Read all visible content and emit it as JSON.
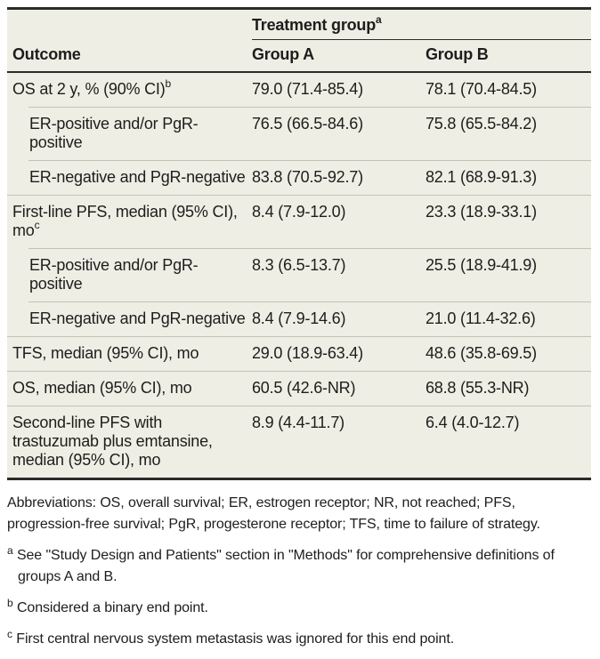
{
  "table": {
    "span_header": {
      "label": "Treatment group",
      "sup": "a"
    },
    "columns": {
      "outcome": "Outcome",
      "group_a": "Group A",
      "group_b": "Group B"
    },
    "rows": [
      {
        "label": "OS at 2 y, % (90% CI)",
        "sup": "b",
        "indent": false,
        "group_a": "79.0 (71.4-85.4)",
        "group_b": "78.1 (70.4-84.5)"
      },
      {
        "label": "ER-positive and/or PgR-positive",
        "indent": true,
        "group_a": "76.5 (66.5-84.6)",
        "group_b": "75.8 (65.5-84.2)"
      },
      {
        "label": "ER-negative and PgR-negative",
        "indent": true,
        "group_a": "83.8 (70.5-92.7)",
        "group_b": "82.1 (68.9-91.3)"
      },
      {
        "label": "First-line PFS, median (95% CI), mo",
        "sup": "c",
        "indent": false,
        "group_a": "8.4 (7.9-12.0)",
        "group_b": "23.3 (18.9-33.1)"
      },
      {
        "label": "ER-positive and/or PgR-positive",
        "indent": true,
        "group_a": "8.3 (6.5-13.7)",
        "group_b": "25.5 (18.9-41.9)"
      },
      {
        "label": "ER-negative and PgR-negative",
        "indent": true,
        "group_a": "8.4 (7.9-14.6)",
        "group_b": "21.0 (11.4-32.6)"
      },
      {
        "label": "TFS, median (95% CI), mo",
        "indent": false,
        "group_a": "29.0 (18.9-63.4)",
        "group_b": "48.6 (35.8-69.5)"
      },
      {
        "label": "OS, median (95% CI), mo",
        "indent": false,
        "group_a": "60.5 (42.6-NR)",
        "group_b": "68.8 (55.3-NR)"
      },
      {
        "label": "Second-line PFS with trastuzumab plus emtansine, median (95% CI), mo",
        "indent": false,
        "group_a": "8.9 (4.4-11.7)",
        "group_b": "6.4 (4.0-12.7)"
      }
    ]
  },
  "footnotes": {
    "abbreviations": "Abbreviations: OS, overall survival; ER, estrogen receptor; NR, not reached; PFS, progression-free survival; PgR, progesterone receptor; TFS, time to failure of strategy.",
    "a": {
      "marker": "a",
      "text": "See \"Study Design and Patients\" section in \"Methods\" for comprehensive definitions of groups A and B."
    },
    "b": {
      "marker": "b",
      "text": "Considered a binary end point."
    },
    "c": {
      "marker": "c",
      "text": "First central nervous system metastasis was ignored for this end point."
    }
  },
  "colors": {
    "table_background": "#efeee5",
    "heavy_rule": "#2b2b28",
    "light_rule": "#c3c2b7",
    "text": "#1d1d1b",
    "page_background": "#ffffff"
  }
}
